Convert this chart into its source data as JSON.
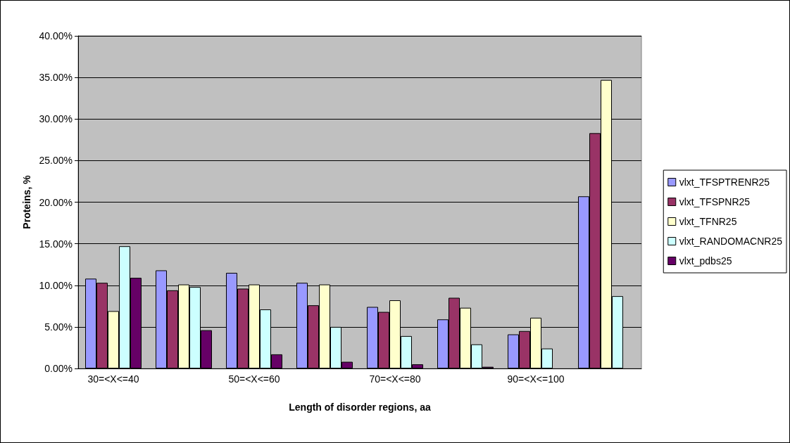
{
  "chart_data": {
    "type": "bar",
    "xlabel": "Length of disorder regions, aa",
    "ylabel": "Proteins, %",
    "categories": [
      "30=<X<=40",
      null,
      "50=<X<=60",
      null,
      "70=<X<=80",
      null,
      "90=<X<=100",
      null
    ],
    "series": [
      {
        "name": "vlxt_TFSPTRENR25",
        "color": "#9999ff",
        "values": [
          10.8,
          11.8,
          11.5,
          10.3,
          7.4,
          5.9,
          4.1,
          20.7
        ]
      },
      {
        "name": "vlxt_TFSPNR25",
        "color": "#993366",
        "values": [
          10.3,
          9.4,
          9.6,
          7.6,
          6.8,
          8.5,
          4.5,
          28.3
        ]
      },
      {
        "name": "vlxt_TFNR25",
        "color": "#ffffcc",
        "values": [
          6.9,
          10.1,
          10.1,
          10.1,
          8.2,
          7.3,
          6.1,
          34.7
        ]
      },
      {
        "name": "vlxt_RANDOMACNR25",
        "color": "#ccffff",
        "values": [
          14.7,
          9.8,
          7.1,
          5.0,
          3.9,
          2.9,
          2.4,
          8.7
        ]
      },
      {
        "name": "vlxt_pdbs25",
        "color": "#660066",
        "values": [
          10.9,
          4.6,
          1.7,
          0.8,
          0.5,
          0.2,
          null,
          null
        ]
      }
    ],
    "ylim": [
      0,
      40
    ],
    "yticks": [
      {
        "value": 0,
        "label": "0.00%"
      },
      {
        "value": 5,
        "label": "5.00%"
      },
      {
        "value": 10,
        "label": "10.00%"
      },
      {
        "value": 15,
        "label": "15.00%"
      },
      {
        "value": 20,
        "label": "20.00%"
      },
      {
        "value": 25,
        "label": "25.00%"
      },
      {
        "value": 30,
        "label": "30.00%"
      },
      {
        "value": 35,
        "label": "35.00%"
      },
      {
        "value": 40,
        "label": "40.00%"
      }
    ],
    "grid": "y",
    "legend": "right"
  }
}
